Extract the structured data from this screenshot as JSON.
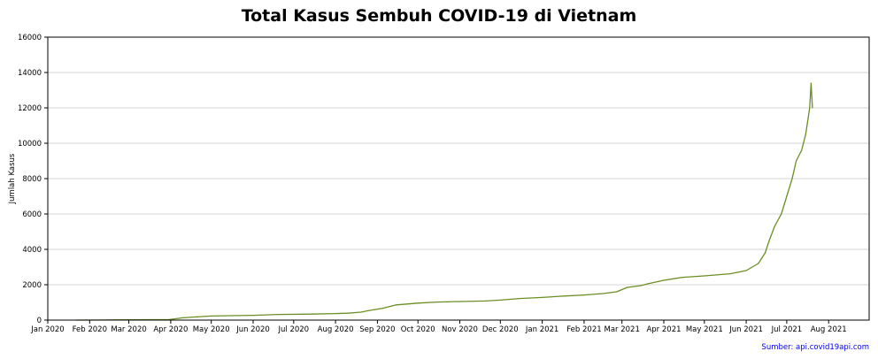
{
  "chart_data": {
    "type": "line",
    "title": "Total Kasus Sembuh COVID-19 di Vietnam",
    "xlabel": "",
    "ylabel": "Jumlah Kasus",
    "source_note": "Sumber: api.covid19api.com",
    "grid": {
      "y": true,
      "x": false
    },
    "line_color": "#6b8e23",
    "xlim": [
      "2020-01-01",
      "2021-08-31"
    ],
    "ylim": [
      0,
      16000
    ],
    "y_ticks": [
      0,
      2000,
      4000,
      6000,
      8000,
      10000,
      12000,
      14000,
      16000
    ],
    "x_ticks": [
      {
        "date": "2020-01-01",
        "label": "Jan 2020"
      },
      {
        "date": "2020-02-01",
        "label": "Feb 2020"
      },
      {
        "date": "2020-03-01",
        "label": "Mar 2020"
      },
      {
        "date": "2020-04-01",
        "label": "Apr 2020"
      },
      {
        "date": "2020-05-01",
        "label": "May 2020"
      },
      {
        "date": "2020-06-01",
        "label": "Jun 2020"
      },
      {
        "date": "2020-07-01",
        "label": "Jul 2020"
      },
      {
        "date": "2020-08-01",
        "label": "Aug 2020"
      },
      {
        "date": "2020-09-01",
        "label": "Sep 2020"
      },
      {
        "date": "2020-10-01",
        "label": "Oct 2020"
      },
      {
        "date": "2020-11-01",
        "label": "Nov 2020"
      },
      {
        "date": "2020-12-01",
        "label": "Dec 2020"
      },
      {
        "date": "2021-01-01",
        "label": "Jan 2021"
      },
      {
        "date": "2021-02-01",
        "label": "Feb 2021"
      },
      {
        "date": "2021-03-01",
        "label": "Mar 2021"
      },
      {
        "date": "2021-04-01",
        "label": "Apr 2021"
      },
      {
        "date": "2021-05-01",
        "label": "May 2021"
      },
      {
        "date": "2021-06-01",
        "label": "Jun 2021"
      },
      {
        "date": "2021-07-01",
        "label": "Jul 2021"
      },
      {
        "date": "2021-08-01",
        "label": "Aug 2021"
      }
    ],
    "series": [
      {
        "points": [
          {
            "x": "2020-01-22",
            "y": 0
          },
          {
            "x": "2020-02-10",
            "y": 3
          },
          {
            "x": "2020-03-01",
            "y": 16
          },
          {
            "x": "2020-03-31",
            "y": 30
          },
          {
            "x": "2020-04-10",
            "y": 130
          },
          {
            "x": "2020-04-20",
            "y": 180
          },
          {
            "x": "2020-05-01",
            "y": 230
          },
          {
            "x": "2020-05-15",
            "y": 250
          },
          {
            "x": "2020-06-01",
            "y": 270
          },
          {
            "x": "2020-06-20",
            "y": 320
          },
          {
            "x": "2020-07-15",
            "y": 340
          },
          {
            "x": "2020-08-01",
            "y": 370
          },
          {
            "x": "2020-08-10",
            "y": 390
          },
          {
            "x": "2020-08-20",
            "y": 450
          },
          {
            "x": "2020-08-25",
            "y": 530
          },
          {
            "x": "2020-09-05",
            "y": 670
          },
          {
            "x": "2020-09-15",
            "y": 860
          },
          {
            "x": "2020-10-01",
            "y": 960
          },
          {
            "x": "2020-10-15",
            "y": 1020
          },
          {
            "x": "2020-11-01",
            "y": 1050
          },
          {
            "x": "2020-11-20",
            "y": 1080
          },
          {
            "x": "2020-12-01",
            "y": 1130
          },
          {
            "x": "2020-12-15",
            "y": 1220
          },
          {
            "x": "2021-01-01",
            "y": 1280
          },
          {
            "x": "2021-01-15",
            "y": 1350
          },
          {
            "x": "2021-02-01",
            "y": 1420
          },
          {
            "x": "2021-02-15",
            "y": 1500
          },
          {
            "x": "2021-02-25",
            "y": 1600
          },
          {
            "x": "2021-03-05",
            "y": 1850
          },
          {
            "x": "2021-03-15",
            "y": 1950
          },
          {
            "x": "2021-03-20",
            "y": 2050
          },
          {
            "x": "2021-04-01",
            "y": 2250
          },
          {
            "x": "2021-04-15",
            "y": 2420
          },
          {
            "x": "2021-05-01",
            "y": 2500
          },
          {
            "x": "2021-05-20",
            "y": 2620
          },
          {
            "x": "2021-06-01",
            "y": 2800
          },
          {
            "x": "2021-06-10",
            "y": 3200
          },
          {
            "x": "2021-06-15",
            "y": 3800
          },
          {
            "x": "2021-06-18",
            "y": 4500
          },
          {
            "x": "2021-06-22",
            "y": 5300
          },
          {
            "x": "2021-06-27",
            "y": 6000
          },
          {
            "x": "2021-07-01",
            "y": 7000
          },
          {
            "x": "2021-07-05",
            "y": 8000
          },
          {
            "x": "2021-07-08",
            "y": 9000
          },
          {
            "x": "2021-07-12",
            "y": 9600
          },
          {
            "x": "2021-07-15",
            "y": 10500
          },
          {
            "x": "2021-07-18",
            "y": 12000
          },
          {
            "x": "2021-07-19",
            "y": 13400
          },
          {
            "x": "2021-07-20",
            "y": 12000
          }
        ]
      }
    ]
  }
}
